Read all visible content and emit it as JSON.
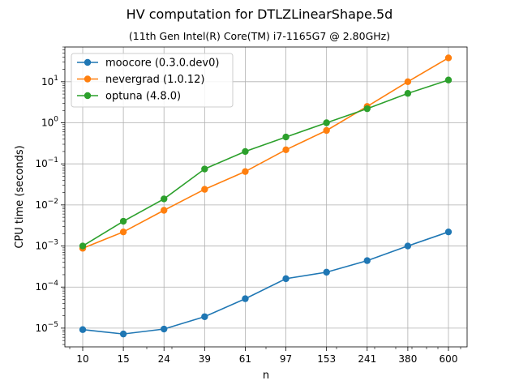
{
  "chart_data": {
    "type": "line",
    "title": "HV computation for DTLZLinearShape.5d",
    "subtitle": "(11th Gen Intel(R) Core(TM) i7-1165G7 @ 2.80GHz)",
    "xlabel": "n",
    "ylabel": "CPU time (seconds)",
    "yscale": "log",
    "ylim": [
      3.5e-06,
      70
    ],
    "grid": true,
    "legend": "top-left",
    "categories": [
      "10",
      "15",
      "24",
      "39",
      "61",
      "97",
      "153",
      "241",
      "380",
      "600"
    ],
    "y_ticks": [
      {
        "value": 1e-05,
        "base": "10",
        "exp": "−5"
      },
      {
        "value": 0.0001,
        "base": "10",
        "exp": "−4"
      },
      {
        "value": 0.001,
        "base": "10",
        "exp": "−3"
      },
      {
        "value": 0.01,
        "base": "10",
        "exp": "−2"
      },
      {
        "value": 0.1,
        "base": "10",
        "exp": "−1"
      },
      {
        "value": 1,
        "base": "10",
        "exp": "0"
      },
      {
        "value": 10,
        "base": "10",
        "exp": "1"
      }
    ],
    "series": [
      {
        "name": "moocore (0.3.0.dev0)",
        "color": "#1f77b4",
        "values": [
          9.2e-06,
          7.2e-06,
          9.5e-06,
          1.9e-05,
          5.2e-05,
          0.00016,
          0.00023,
          0.00044,
          0.001,
          0.0022
        ]
      },
      {
        "name": "nevergrad (1.0.12)",
        "color": "#ff7f0e",
        "values": [
          0.00088,
          0.0022,
          0.0074,
          0.024,
          0.065,
          0.22,
          0.65,
          2.5,
          10,
          38
        ]
      },
      {
        "name": "optuna (4.8.0)",
        "color": "#2ca02c",
        "values": [
          0.001,
          0.004,
          0.014,
          0.075,
          0.2,
          0.45,
          1.0,
          2.2,
          5.2,
          11
        ]
      }
    ]
  }
}
